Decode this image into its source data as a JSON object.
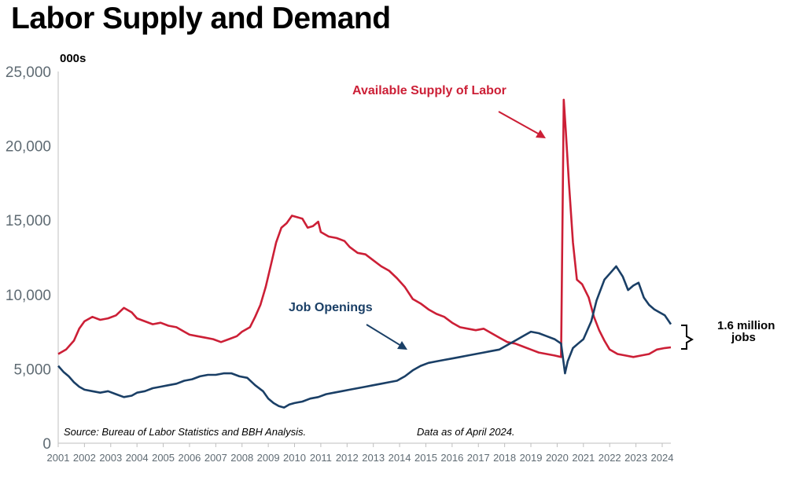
{
  "colors": {
    "supply": "#cc1f36",
    "openings": "#1a3f66",
    "axis": "#bfbfbf",
    "tick": "#5f6b73"
  },
  "chart_data": {
    "type": "line",
    "title": "Labor Supply and Demand",
    "unit_label": "000s",
    "ylim": [
      0,
      25000
    ],
    "y_ticks": [
      0,
      5000,
      10000,
      15000,
      20000,
      25000
    ],
    "y_tick_labels": [
      "0",
      "5,000",
      "10,000",
      "15,000",
      "20,000",
      "25,000"
    ],
    "xlim": [
      2001.0,
      2024.33
    ],
    "x_ticks": [
      2001,
      2002,
      2003,
      2004,
      2005,
      2006,
      2007,
      2008,
      2009,
      2010,
      2011,
      2012,
      2013,
      2014,
      2015,
      2016,
      2017,
      2018,
      2019,
      2020,
      2021,
      2022,
      2023,
      2024
    ],
    "x_tick_labels": [
      "2001",
      "2002",
      "2003",
      "2004",
      "2005",
      "2006",
      "2007",
      "2008",
      "2009",
      "2010",
      "2011",
      "2012",
      "2013",
      "2014",
      "2015",
      "2016",
      "2017",
      "2018",
      "2019",
      "2020",
      "2021",
      "2022",
      "2023",
      "2024"
    ],
    "series": [
      {
        "name": "Available Supply of Labor",
        "color_key": "supply",
        "points": [
          [
            2001.0,
            6000
          ],
          [
            2001.3,
            6300
          ],
          [
            2001.6,
            6900
          ],
          [
            2001.8,
            7700
          ],
          [
            2002.0,
            8200
          ],
          [
            2002.3,
            8500
          ],
          [
            2002.6,
            8300
          ],
          [
            2002.9,
            8400
          ],
          [
            2003.2,
            8600
          ],
          [
            2003.5,
            9100
          ],
          [
            2003.8,
            8800
          ],
          [
            2004.0,
            8400
          ],
          [
            2004.3,
            8200
          ],
          [
            2004.6,
            8000
          ],
          [
            2004.9,
            8100
          ],
          [
            2005.2,
            7900
          ],
          [
            2005.5,
            7800
          ],
          [
            2005.8,
            7500
          ],
          [
            2006.0,
            7300
          ],
          [
            2006.3,
            7200
          ],
          [
            2006.6,
            7100
          ],
          [
            2006.9,
            7000
          ],
          [
            2007.2,
            6800
          ],
          [
            2007.5,
            7000
          ],
          [
            2007.8,
            7200
          ],
          [
            2008.0,
            7500
          ],
          [
            2008.3,
            7800
          ],
          [
            2008.5,
            8500
          ],
          [
            2008.7,
            9300
          ],
          [
            2008.9,
            10500
          ],
          [
            2009.1,
            12000
          ],
          [
            2009.3,
            13500
          ],
          [
            2009.5,
            14500
          ],
          [
            2009.7,
            14800
          ],
          [
            2009.9,
            15300
          ],
          [
            2010.1,
            15200
          ],
          [
            2010.3,
            15100
          ],
          [
            2010.5,
            14500
          ],
          [
            2010.7,
            14600
          ],
          [
            2010.9,
            14900
          ],
          [
            2011.0,
            14200
          ],
          [
            2011.3,
            13900
          ],
          [
            2011.6,
            13800
          ],
          [
            2011.9,
            13600
          ],
          [
            2012.1,
            13200
          ],
          [
            2012.4,
            12800
          ],
          [
            2012.7,
            12700
          ],
          [
            2013.0,
            12300
          ],
          [
            2013.3,
            11900
          ],
          [
            2013.6,
            11600
          ],
          [
            2013.9,
            11100
          ],
          [
            2014.2,
            10500
          ],
          [
            2014.5,
            9700
          ],
          [
            2014.8,
            9400
          ],
          [
            2015.1,
            9000
          ],
          [
            2015.4,
            8700
          ],
          [
            2015.7,
            8500
          ],
          [
            2016.0,
            8100
          ],
          [
            2016.3,
            7800
          ],
          [
            2016.6,
            7700
          ],
          [
            2016.9,
            7600
          ],
          [
            2017.2,
            7700
          ],
          [
            2017.5,
            7400
          ],
          [
            2017.8,
            7100
          ],
          [
            2018.1,
            6800
          ],
          [
            2018.4,
            6700
          ],
          [
            2018.7,
            6500
          ],
          [
            2019.0,
            6300
          ],
          [
            2019.3,
            6100
          ],
          [
            2019.6,
            6000
          ],
          [
            2019.9,
            5900
          ],
          [
            2020.15,
            5800
          ],
          [
            2020.25,
            23100
          ],
          [
            2020.33,
            21000
          ],
          [
            2020.45,
            17500
          ],
          [
            2020.6,
            13500
          ],
          [
            2020.75,
            11000
          ],
          [
            2020.95,
            10700
          ],
          [
            2021.2,
            9800
          ],
          [
            2021.4,
            8500
          ],
          [
            2021.6,
            7600
          ],
          [
            2021.8,
            6900
          ],
          [
            2022.0,
            6300
          ],
          [
            2022.3,
            6000
          ],
          [
            2022.6,
            5900
          ],
          [
            2022.9,
            5800
          ],
          [
            2023.2,
            5900
          ],
          [
            2023.5,
            6000
          ],
          [
            2023.8,
            6300
          ],
          [
            2024.1,
            6400
          ],
          [
            2024.33,
            6450
          ]
        ]
      },
      {
        "name": "Job Openings",
        "color_key": "openings",
        "points": [
          [
            2001.0,
            5200
          ],
          [
            2001.2,
            4800
          ],
          [
            2001.4,
            4500
          ],
          [
            2001.6,
            4100
          ],
          [
            2001.8,
            3800
          ],
          [
            2002.0,
            3600
          ],
          [
            2002.3,
            3500
          ],
          [
            2002.6,
            3400
          ],
          [
            2002.9,
            3500
          ],
          [
            2003.2,
            3300
          ],
          [
            2003.5,
            3100
          ],
          [
            2003.8,
            3200
          ],
          [
            2004.0,
            3400
          ],
          [
            2004.3,
            3500
          ],
          [
            2004.6,
            3700
          ],
          [
            2004.9,
            3800
          ],
          [
            2005.2,
            3900
          ],
          [
            2005.5,
            4000
          ],
          [
            2005.8,
            4200
          ],
          [
            2006.1,
            4300
          ],
          [
            2006.4,
            4500
          ],
          [
            2006.7,
            4600
          ],
          [
            2007.0,
            4600
          ],
          [
            2007.3,
            4700
          ],
          [
            2007.6,
            4700
          ],
          [
            2007.9,
            4500
          ],
          [
            2008.2,
            4400
          ],
          [
            2008.5,
            3900
          ],
          [
            2008.8,
            3500
          ],
          [
            2009.0,
            3000
          ],
          [
            2009.2,
            2700
          ],
          [
            2009.4,
            2500
          ],
          [
            2009.6,
            2400
          ],
          [
            2009.8,
            2600
          ],
          [
            2010.0,
            2700
          ],
          [
            2010.3,
            2800
          ],
          [
            2010.6,
            3000
          ],
          [
            2010.9,
            3100
          ],
          [
            2011.2,
            3300
          ],
          [
            2011.5,
            3400
          ],
          [
            2011.8,
            3500
          ],
          [
            2012.1,
            3600
          ],
          [
            2012.4,
            3700
          ],
          [
            2012.7,
            3800
          ],
          [
            2013.0,
            3900
          ],
          [
            2013.3,
            4000
          ],
          [
            2013.6,
            4100
          ],
          [
            2013.9,
            4200
          ],
          [
            2014.2,
            4500
          ],
          [
            2014.5,
            4900
          ],
          [
            2014.8,
            5200
          ],
          [
            2015.1,
            5400
          ],
          [
            2015.4,
            5500
          ],
          [
            2015.7,
            5600
          ],
          [
            2016.0,
            5700
          ],
          [
            2016.3,
            5800
          ],
          [
            2016.6,
            5900
          ],
          [
            2016.9,
            6000
          ],
          [
            2017.2,
            6100
          ],
          [
            2017.5,
            6200
          ],
          [
            2017.8,
            6300
          ],
          [
            2018.1,
            6600
          ],
          [
            2018.4,
            6900
          ],
          [
            2018.7,
            7200
          ],
          [
            2019.0,
            7500
          ],
          [
            2019.3,
            7400
          ],
          [
            2019.6,
            7200
          ],
          [
            2019.9,
            7000
          ],
          [
            2020.15,
            6700
          ],
          [
            2020.3,
            4700
          ],
          [
            2020.4,
            5500
          ],
          [
            2020.6,
            6400
          ],
          [
            2020.8,
            6700
          ],
          [
            2021.0,
            7000
          ],
          [
            2021.3,
            8200
          ],
          [
            2021.5,
            9600
          ],
          [
            2021.8,
            11000
          ],
          [
            2022.0,
            11400
          ],
          [
            2022.25,
            11900
          ],
          [
            2022.5,
            11200
          ],
          [
            2022.7,
            10300
          ],
          [
            2022.9,
            10600
          ],
          [
            2023.1,
            10800
          ],
          [
            2023.3,
            9800
          ],
          [
            2023.5,
            9300
          ],
          [
            2023.7,
            9000
          ],
          [
            2023.9,
            8800
          ],
          [
            2024.1,
            8600
          ],
          [
            2024.33,
            8000
          ]
        ]
      }
    ],
    "annotations": [
      {
        "text": "Available Supply of Labor",
        "color_key": "supply"
      },
      {
        "text": "Job Openings",
        "color_key": "openings"
      }
    ],
    "gap_label": "1.6 million",
    "gap_label_2": "jobs",
    "source_note": "Source: Bureau of Labor Statistics and BBH Analysis.",
    "date_note": "Data as of April 2024."
  }
}
